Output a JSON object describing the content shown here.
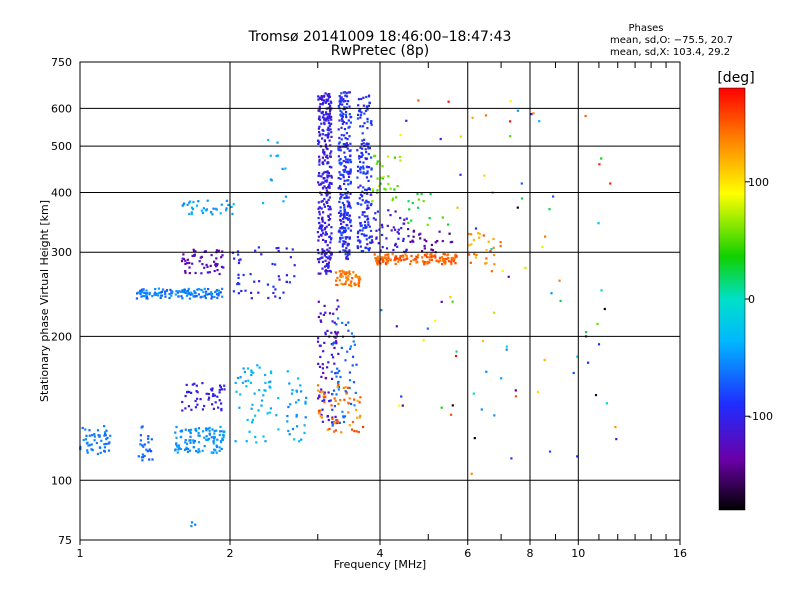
{
  "chart_data": {
    "type": "scatter",
    "title": "Tromsø 20141009 18:46:00–18:47:43",
    "subtitle": "RwPretec (8p)",
    "xlabel": "Frequency [MHz]",
    "ylabel": "Stationary phase Virtual Height [km]",
    "x_scale": "log",
    "y_scale": "log",
    "xlim": [
      1,
      16
    ],
    "ylim": [
      75,
      750
    ],
    "x_ticks": [
      1,
      2,
      4,
      6,
      8,
      10,
      16
    ],
    "x_minor_ticks": [
      3,
      5,
      7,
      9,
      11,
      12,
      13,
      14,
      15
    ],
    "y_ticks": [
      75,
      100,
      200,
      300,
      400,
      500,
      600,
      750
    ],
    "grid": true,
    "stats": {
      "title": "Phases",
      "line1": "mean, sd,O: −75.5, 20.7",
      "line2": "mean, sd,X: 103.4, 29.2"
    },
    "colorbar": {
      "label": "[deg]",
      "range": [
        -180,
        180
      ],
      "ticks": [
        100,
        0,
        -100
      ]
    },
    "clusters": [
      {
        "f": [
          1.0,
          1.15
        ],
        "h": [
          112,
          130
        ],
        "phase": [
          -70,
          -50
        ],
        "n": 50
      },
      {
        "f": [
          1.3,
          1.4
        ],
        "h": [
          110,
          130
        ],
        "phase": [
          -80,
          -60
        ],
        "n": 25
      },
      {
        "f": [
          1.55,
          1.95
        ],
        "h": [
          114,
          130
        ],
        "phase": [
          -60,
          -40
        ],
        "n": 110
      },
      {
        "f": [
          1.6,
          1.95
        ],
        "h": [
          140,
          160
        ],
        "phase": [
          -115,
          -95
        ],
        "n": 50
      },
      {
        "f": [
          1.65,
          1.75
        ],
        "h": [
          80,
          82
        ],
        "phase": [
          -60,
          -50
        ],
        "n": 3
      },
      {
        "f": [
          1.3,
          1.95
        ],
        "h": [
          240,
          252
        ],
        "phase": [
          -75,
          -40
        ],
        "n": 120
      },
      {
        "f": [
          1.6,
          1.95
        ],
        "h": [
          270,
          305
        ],
        "phase": [
          -140,
          -110
        ],
        "n": 55
      },
      {
        "f": [
          1.6,
          2.05
        ],
        "h": [
          360,
          385
        ],
        "phase": [
          -60,
          -30
        ],
        "n": 35
      },
      {
        "f": [
          2.05,
          2.5
        ],
        "h": [
          120,
          175
        ],
        "phase": [
          -50,
          -20
        ],
        "n": 55
      },
      {
        "f": [
          2.0,
          2.7
        ],
        "h": [
          240,
          310
        ],
        "phase": [
          -110,
          -80
        ],
        "n": 50
      },
      {
        "f": [
          2.3,
          2.6
        ],
        "h": [
          380,
          520
        ],
        "phase": [
          -50,
          -30
        ],
        "n": 12
      },
      {
        "f": [
          2.6,
          2.85
        ],
        "h": [
          120,
          170
        ],
        "phase": [
          -60,
          -30
        ],
        "n": 30
      },
      {
        "f": [
          3.0,
          3.2
        ],
        "h": [
          270,
          650
        ],
        "phase": [
          -120,
          -90
        ],
        "n": 320
      },
      {
        "f": [
          3.3,
          3.5
        ],
        "h": [
          290,
          650
        ],
        "phase": [
          -110,
          -75
        ],
        "n": 260
      },
      {
        "f": [
          3.6,
          3.85
        ],
        "h": [
          300,
          640
        ],
        "phase": [
          -105,
          -75
        ],
        "n": 170
      },
      {
        "f": [
          3.0,
          3.3
        ],
        "h": [
          130,
          240
        ],
        "phase": [
          -130,
          -100
        ],
        "n": 80
      },
      {
        "f": [
          3.2,
          3.6
        ],
        "h": [
          130,
          220
        ],
        "phase": [
          -80,
          -50
        ],
        "n": 55
      },
      {
        "f": [
          3.25,
          3.65
        ],
        "h": [
          255,
          275
        ],
        "phase": [
          130,
          150
        ],
        "n": 55
      },
      {
        "f": [
          3.0,
          3.7
        ],
        "h": [
          125,
          160
        ],
        "phase": [
          120,
          160
        ],
        "n": 55
      },
      {
        "f": [
          3.85,
          4.4
        ],
        "h": [
          380,
          480
        ],
        "phase": [
          30,
          80
        ],
        "n": 30
      },
      {
        "f": [
          3.85,
          4.6
        ],
        "h": [
          300,
          370
        ],
        "phase": [
          -130,
          -90
        ],
        "n": 45
      },
      {
        "f": [
          3.9,
          5.7
        ],
        "h": [
          283,
          298
        ],
        "phase": [
          135,
          160
        ],
        "n": 140
      },
      {
        "f": [
          4.6,
          5.6
        ],
        "h": [
          300,
          335
        ],
        "phase": [
          -155,
          -120
        ],
        "n": 25
      },
      {
        "f": [
          4.5,
          5.5
        ],
        "h": [
          340,
          400
        ],
        "phase": [
          10,
          60
        ],
        "n": 15
      },
      {
        "f": [
          6.0,
          7.0
        ],
        "h": [
          280,
          330
        ],
        "phase": [
          110,
          160
        ],
        "n": 25
      },
      {
        "f": [
          4.0,
          12.0
        ],
        "h": [
          100,
          650
        ],
        "phase": [
          -180,
          180
        ],
        "n": 90
      }
    ]
  }
}
